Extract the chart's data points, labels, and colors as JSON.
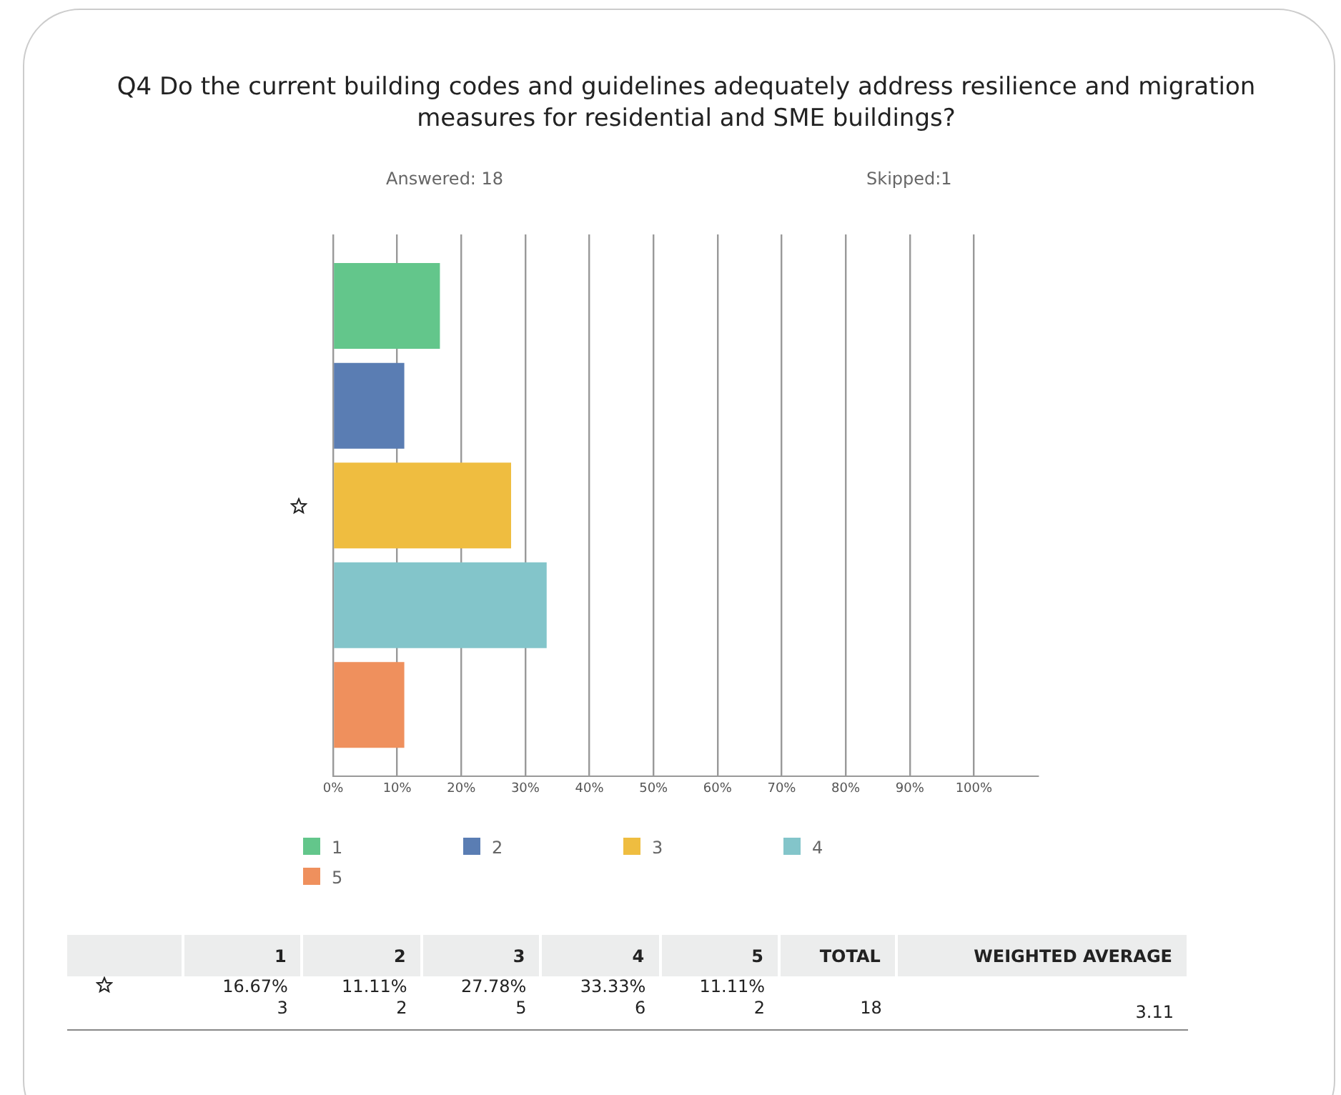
{
  "chart_data": {
    "type": "bar",
    "orientation": "horizontal",
    "title": "Q4 Do the current building codes and guidelines adequately address resilience and migration measures for residential and SME buildings?",
    "annotations": [
      "Answered: 18",
      "Skipped:1",
      "TOTAL",
      "WEIGHTED AVERAGE",
      "3",
      "2",
      "5",
      "6",
      "2",
      "18",
      "3.11",
      "16.67%",
      "11.11%",
      "27.78%",
      "33.33%",
      "11.11%"
    ],
    "categories": [
      null
    ],
    "series": [
      {
        "name": "1",
        "color": "#63c68b",
        "values": [
          16.67
        ]
      },
      {
        "name": "2",
        "color": "#5a7db3",
        "values": [
          11.11
        ]
      },
      {
        "name": "3",
        "color": "#efbd40",
        "values": [
          27.78
        ]
      },
      {
        "name": "4",
        "color": "#83c5ca",
        "values": [
          33.33
        ]
      },
      {
        "name": "5",
        "color": "#ef905d",
        "values": [
          11.11
        ]
      }
    ],
    "xlim": [
      0,
      110
    ],
    "xticks": [
      {
        "value": 0,
        "label": "0%"
      },
      {
        "value": 10,
        "label": "10%"
      },
      {
        "value": 20,
        "label": "20%"
      },
      {
        "value": 30,
        "label": "30%"
      },
      {
        "value": 40,
        "label": "40%"
      },
      {
        "value": 50,
        "label": "50%"
      },
      {
        "value": 60,
        "label": "60%"
      },
      {
        "value": 70,
        "label": "70%"
      },
      {
        "value": 80,
        "label": "80%"
      },
      {
        "value": 90,
        "label": "90%"
      },
      {
        "value": 100,
        "label": "100%"
      }
    ],
    "grid": "x",
    "legend": "bottom"
  }
}
